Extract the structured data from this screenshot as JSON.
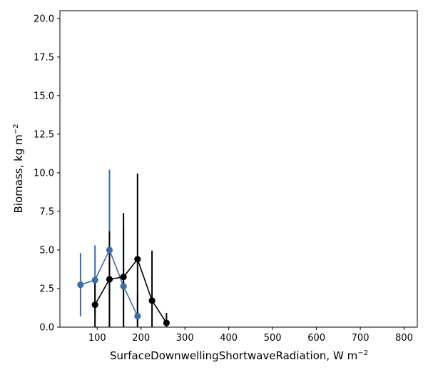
{
  "chart_data": {
    "type": "line",
    "title": "",
    "xlabel": "SurfaceDownwellingShortwaveRadiation,",
    "xlabel_units": "W m",
    "xlabel_exp": "−2",
    "ylabel": "Biomass,",
    "ylabel_units": "kg m",
    "ylabel_exp": "−2",
    "xlim": [
      15,
      830
    ],
    "ylim": [
      0,
      20.5
    ],
    "xticks": [
      100,
      200,
      300,
      400,
      500,
      600,
      700,
      800
    ],
    "xtick_labels": [
      "100",
      "200",
      "300",
      "400",
      "500",
      "600",
      "700",
      "800"
    ],
    "yticks": [
      0,
      2.5,
      5,
      7.5,
      10,
      12.5,
      15,
      17.5,
      20
    ],
    "ytick_labels": [
      "0.0",
      "2.5",
      "5.0",
      "7.5",
      "10.0",
      "12.5",
      "15.0",
      "17.5",
      "20.0"
    ],
    "grid": false,
    "series": [
      {
        "name": "series-blue",
        "color": "#3a6ea5",
        "x": [
          62,
          95,
          128,
          160,
          192
        ],
        "y": [
          2.75,
          3.05,
          5.0,
          2.65,
          0.72
        ],
        "err_low": [
          0.7,
          0.8,
          0.0,
          0.0,
          0.0
        ],
        "err_high": [
          4.8,
          5.3,
          10.2,
          6.4,
          2.1
        ]
      },
      {
        "name": "series-black",
        "color": "#000000",
        "x": [
          95,
          128,
          160,
          192,
          225,
          258
        ],
        "y": [
          1.45,
          3.1,
          3.25,
          4.4,
          1.72,
          0.28
        ],
        "err_low": [
          0.0,
          0.0,
          0.0,
          0.0,
          0.0,
          0.0
        ],
        "err_high": [
          2.9,
          6.2,
          7.4,
          9.95,
          4.95,
          0.92
        ]
      }
    ]
  }
}
